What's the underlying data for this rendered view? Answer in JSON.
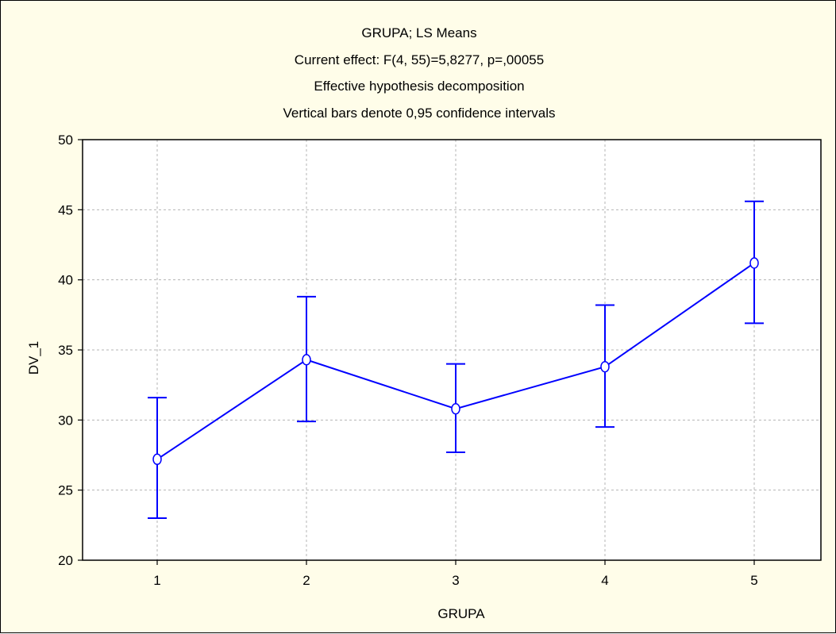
{
  "chart_data": {
    "type": "line",
    "title": [
      "GRUPA; LS Means",
      "Current effect: F(4, 55)=5,8277, p=,00055",
      "Effective hypothesis decomposition",
      "Vertical bars denote 0,95 confidence intervals"
    ],
    "xlabel": "GRUPA",
    "ylabel": "DV_1",
    "categories": [
      "1",
      "2",
      "3",
      "4",
      "5"
    ],
    "series": [
      {
        "values": [
          27.2,
          34.3,
          30.8,
          33.8,
          41.2
        ],
        "ci_lower": [
          23.0,
          29.9,
          27.7,
          29.5,
          36.9
        ],
        "ci_upper": [
          31.6,
          38.8,
          34.0,
          38.2,
          45.6
        ]
      }
    ],
    "ylim": [
      20,
      50
    ],
    "yticks": [
      "20",
      "25",
      "30",
      "35",
      "40",
      "45",
      "50"
    ],
    "grid": true,
    "line_color": "#0000ff",
    "marker_fill": "#ffffff",
    "background_color": "#fffde9",
    "plot_background_color": "#ffffff",
    "grid_color": "#b4b4b4"
  }
}
